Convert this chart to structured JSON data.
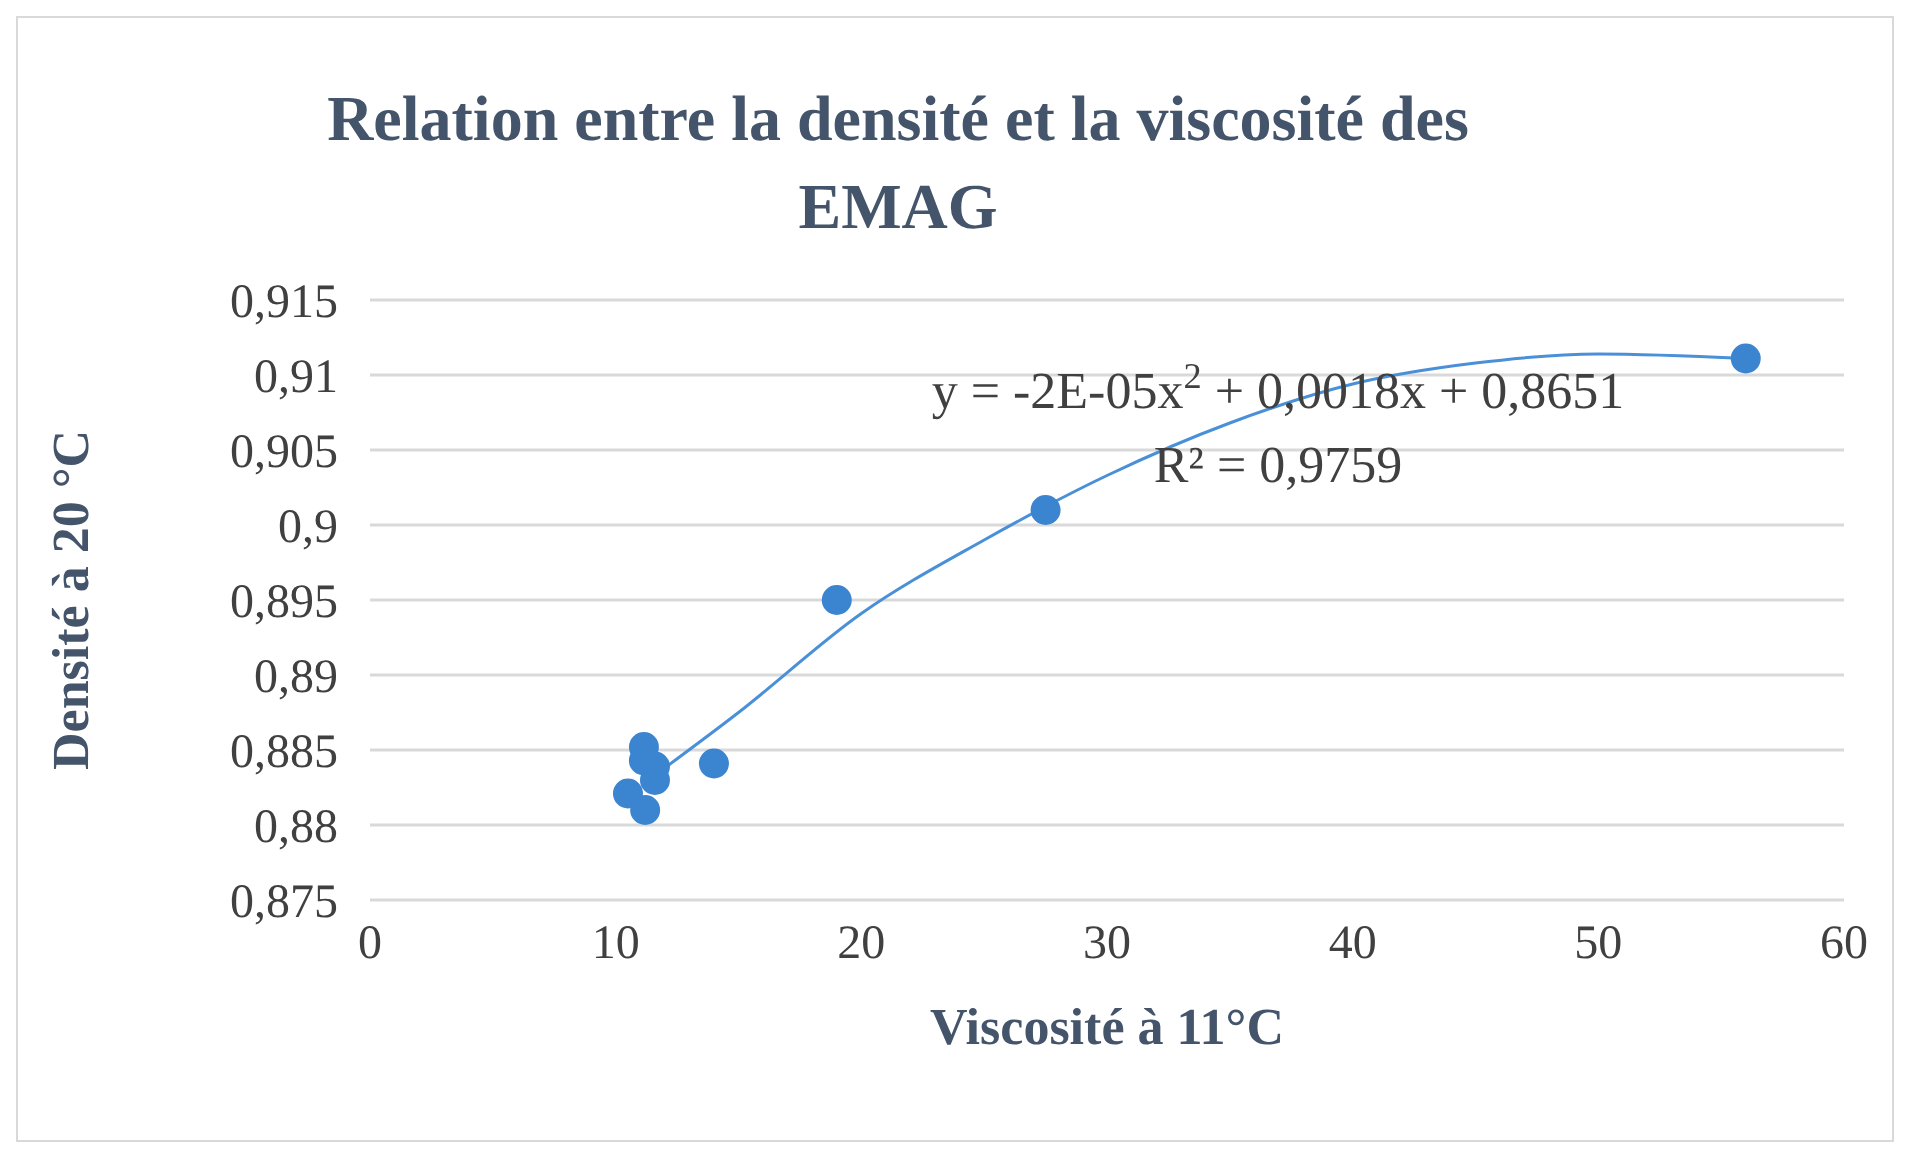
{
  "chart_data": {
    "type": "scatter",
    "title": "Relation entre la densité et la viscosité des EMAG",
    "xlabel": "Viscosité à 11°C",
    "ylabel": "Densité à 20 °C",
    "xlim": [
      0,
      60
    ],
    "xticks": [
      0,
      10,
      20,
      30,
      40,
      50,
      60
    ],
    "ylim": [
      0.875,
      0.915
    ],
    "yticks": [
      {
        "value": 0.875,
        "label": "0,875"
      },
      {
        "value": 0.88,
        "label": "0,88"
      },
      {
        "value": 0.885,
        "label": "0,885"
      },
      {
        "value": 0.89,
        "label": "0,89"
      },
      {
        "value": 0.895,
        "label": "0,895"
      },
      {
        "value": 0.9,
        "label": "0,9"
      },
      {
        "value": 0.905,
        "label": "0,905"
      },
      {
        "value": 0.91,
        "label": "0,91"
      },
      {
        "value": 0.915,
        "label": "0,915"
      }
    ],
    "grid": "y",
    "annotations": [
      "y = -2E-05x$^{2}$ + 0,0018x + 0,8651",
      "R² = 0,9759"
    ],
    "series": [
      {
        "color": "#3b84d0",
        "marker": "circle",
        "x": [
          10.5,
          11.2,
          11.15,
          11.15,
          11.6,
          11.6,
          14,
          19,
          27.5,
          56
        ],
        "values": [
          0.8821,
          0.881,
          0.8852,
          0.8843,
          0.8839,
          0.883,
          0.8841,
          0.895,
          0.901,
          0.9111
        ]
      },
      {
        "type": "line",
        "color": "#4a90d9",
        "marker": "none",
        "line_style": "solid",
        "x": [
          11.5,
          15,
          20,
          25,
          30,
          35,
          40,
          45,
          50,
          56
        ],
        "values": [
          0.8832,
          0.8875,
          0.8941,
          0.899,
          0.9033,
          0.9068,
          0.9094,
          0.9108,
          0.9114,
          0.9111
        ]
      }
    ]
  }
}
